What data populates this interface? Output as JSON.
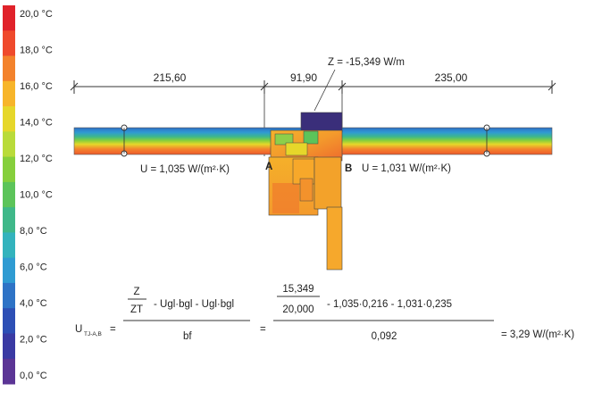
{
  "scale": {
    "labels": [
      "20,0 °C",
      "18,0 °C",
      "16,0 °C",
      "14,0 °C",
      "12,0 °C",
      "10,0 °C",
      "8,0 °C",
      "6,0 °C",
      "4,0 °C",
      "2,0 °C",
      "0,0 °C"
    ],
    "colors": [
      "#e0222a",
      "#ef4a2c",
      "#f3822c",
      "#f7b52a",
      "#e6d72a",
      "#b9db3a",
      "#86cf3c",
      "#5cc45a",
      "#3fb889",
      "#33b3bd",
      "#2f9bd2",
      "#2e73c6",
      "#2d4fb5",
      "#3a3aa3",
      "#5b3595"
    ]
  },
  "dimensions": {
    "left": "215,60",
    "middle": "91,90",
    "right": "235,00"
  },
  "z_label": "Z = -15,349 W/m",
  "u_left": "U = 1,035 W/(m²·K)",
  "u_right": "U = 1,031 W/(m²·K)",
  "point_a": "A",
  "point_b": "B",
  "formula": {
    "lhs_u": "U",
    "lhs_sub": "TJ-A,B",
    "eq1_num_top": "Z",
    "eq1_num_bottom": "ZT",
    "eq1_num_rest": "- Ugl·bgl - Ugl·bgl",
    "eq1_den": "bf",
    "eq2_frac_top": "15,349",
    "eq2_frac_bottom": "20,000",
    "eq2_num_rest": "- 1,035·0,216  -  1,031·0,235",
    "eq2_den": "0,092",
    "result": "= 3,29 W/(m²·K)"
  }
}
